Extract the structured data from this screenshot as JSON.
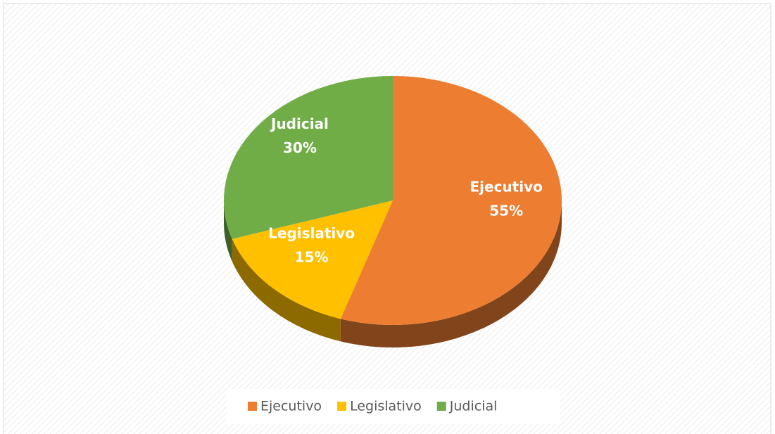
{
  "chart_data": {
    "type": "pie",
    "categories": [
      "Ejecutivo",
      "Legislativo",
      "Judicial"
    ],
    "values": [
      55,
      15,
      30
    ],
    "value_labels": [
      "55%",
      "15%",
      "30%"
    ],
    "colors": [
      "#ed7d31",
      "#ffc000",
      "#70ad47"
    ],
    "legend": "bottom"
  }
}
